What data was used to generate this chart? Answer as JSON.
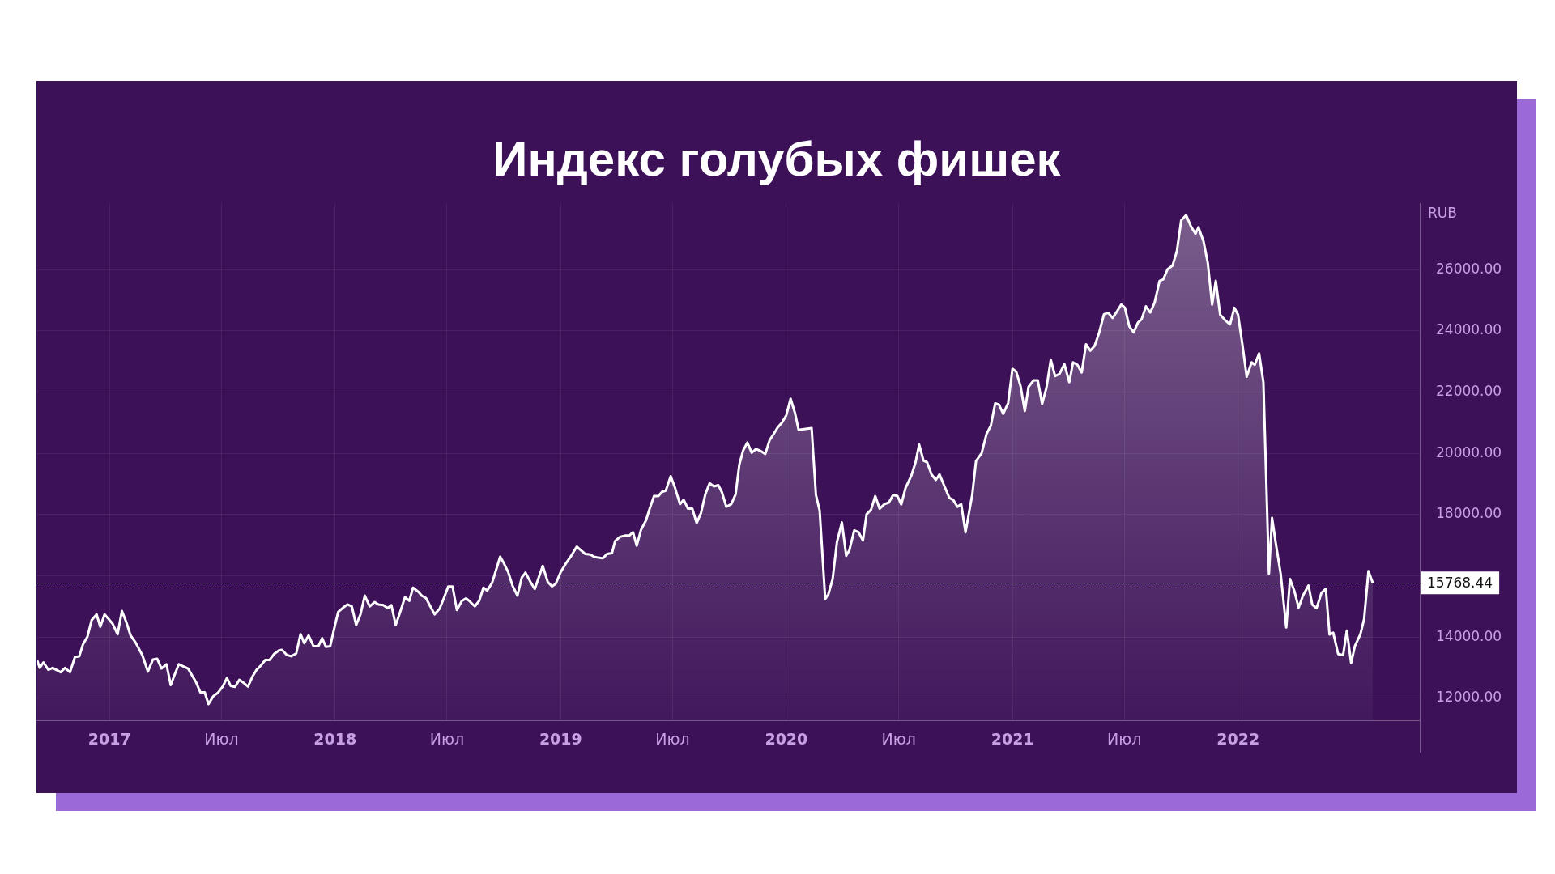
{
  "chart_data": {
    "type": "area",
    "title": "Индекс голубых фишек",
    "ylabel": "RUB",
    "x": [
      "2016-09-06",
      "2016-09-10",
      "2016-09-16",
      "2016-09-24",
      "2016-10-01",
      "2016-10-14",
      "2016-10-21",
      "2016-10-29",
      "2016-11-06",
      "2016-11-13",
      "2016-11-19",
      "2016-11-26",
      "2016-12-03",
      "2016-12-11",
      "2016-12-17",
      "2016-12-24",
      "2017-01-06",
      "2017-01-14",
      "2017-01-21",
      "2017-01-28",
      "2017-02-04",
      "2017-02-12",
      "2017-02-23",
      "2017-03-04",
      "2017-03-12",
      "2017-03-19",
      "2017-03-26",
      "2017-04-03",
      "2017-04-10",
      "2017-04-15",
      "2017-04-23",
      "2017-05-08",
      "2017-05-14",
      "2017-05-21",
      "2017-05-28",
      "2017-06-04",
      "2017-06-10",
      "2017-06-18",
      "2017-06-25",
      "2017-07-03",
      "2017-07-10",
      "2017-07-16",
      "2017-07-23",
      "2017-07-30",
      "2017-08-06",
      "2017-08-13",
      "2017-08-20",
      "2017-08-27",
      "2017-09-03",
      "2017-09-10",
      "2017-09-17",
      "2017-09-24",
      "2017-10-02",
      "2017-10-07",
      "2017-10-15",
      "2017-10-22",
      "2017-10-30",
      "2017-11-06",
      "2017-11-12",
      "2017-11-19",
      "2017-11-27",
      "2017-12-05",
      "2017-12-11",
      "2017-12-17",
      "2017-12-24",
      "2018-01-01",
      "2018-01-06",
      "2018-01-14",
      "2018-01-21",
      "2018-01-28",
      "2018-02-04",
      "2018-02-11",
      "2018-02-18",
      "2018-02-26",
      "2018-03-06",
      "2018-03-12",
      "2018-03-20",
      "2018-03-27",
      "2018-04-02",
      "2018-04-09",
      "2018-04-16",
      "2018-04-24",
      "2018-05-01",
      "2018-05-07",
      "2018-05-16",
      "2018-05-21",
      "2018-05-28",
      "2018-06-04",
      "2018-06-11",
      "2018-06-19",
      "2018-06-26",
      "2018-07-03",
      "2018-07-10",
      "2018-07-17",
      "2018-07-25",
      "2018-08-01",
      "2018-08-07",
      "2018-08-15",
      "2018-08-22",
      "2018-08-29",
      "2018-09-04",
      "2018-09-12",
      "2018-09-25",
      "2018-09-30",
      "2018-10-08",
      "2018-10-15",
      "2018-10-23",
      "2018-10-30",
      "2018-11-05",
      "2018-11-13",
      "2018-11-20",
      "2018-12-03",
      "2018-12-11",
      "2018-12-18",
      "2018-12-24",
      "2019-01-01",
      "2019-01-09",
      "2019-01-18",
      "2019-01-27",
      "2019-02-03",
      "2019-02-10",
      "2019-02-18",
      "2019-02-24",
      "2019-03-03",
      "2019-03-10",
      "2019-03-17",
      "2019-03-25",
      "2019-03-30",
      "2019-04-07",
      "2019-04-15",
      "2019-04-22",
      "2019-04-28",
      "2019-05-04",
      "2019-05-11",
      "2019-05-19",
      "2019-05-25",
      "2019-06-01",
      "2019-06-08",
      "2019-06-14",
      "2019-06-20",
      "2019-06-28",
      "2019-07-05",
      "2019-07-13",
      "2019-07-19",
      "2019-07-26",
      "2019-08-02",
      "2019-08-09",
      "2019-08-16",
      "2019-08-23",
      "2019-08-30",
      "2019-09-06",
      "2019-09-13",
      "2019-09-19",
      "2019-09-26",
      "2019-10-04",
      "2019-10-11",
      "2019-10-17",
      "2019-10-23",
      "2019-10-30",
      "2019-11-06",
      "2019-11-13",
      "2019-11-20",
      "2019-11-28",
      "2019-12-05",
      "2019-12-11",
      "2019-12-18",
      "2019-12-25",
      "2020-01-01",
      "2020-01-08",
      "2020-01-15",
      "2020-01-21",
      "2020-01-30",
      "2020-02-11",
      "2020-02-18",
      "2020-02-24",
      "2020-03-04",
      "2020-03-09",
      "2020-03-16",
      "2020-03-23",
      "2020-03-31",
      "2020-04-07",
      "2020-04-12",
      "2020-04-20",
      "2020-04-27",
      "2020-05-04",
      "2020-05-10",
      "2020-05-17",
      "2020-05-24",
      "2020-05-31",
      "2020-06-08",
      "2020-06-15",
      "2020-06-22",
      "2020-06-29",
      "2020-07-05",
      "2020-07-12",
      "2020-07-21",
      "2020-07-28",
      "2020-08-03",
      "2020-08-10",
      "2020-08-16",
      "2020-08-23",
      "2020-08-30",
      "2020-09-05",
      "2020-09-13",
      "2020-09-21",
      "2020-09-27",
      "2020-10-04",
      "2020-10-10",
      "2020-10-17",
      "2020-10-28",
      "2020-11-03",
      "2020-11-12",
      "2020-11-20",
      "2020-11-27",
      "2020-12-04",
      "2020-12-10",
      "2020-12-17",
      "2020-12-25",
      "2021-01-01",
      "2021-01-07",
      "2021-01-14",
      "2021-01-21",
      "2021-01-27",
      "2021-02-04",
      "2021-02-11",
      "2021-02-18",
      "2021-02-25",
      "2021-03-04",
      "2021-03-11",
      "2021-03-18",
      "2021-03-26",
      "2021-04-03",
      "2021-04-09",
      "2021-04-16",
      "2021-04-23",
      "2021-04-30",
      "2021-05-07",
      "2021-05-14",
      "2021-05-21",
      "2021-05-29",
      "2021-06-05",
      "2021-06-12",
      "2021-06-19",
      "2021-06-26",
      "2021-07-02",
      "2021-07-09",
      "2021-07-16",
      "2021-07-23",
      "2021-07-29",
      "2021-08-05",
      "2021-08-12",
      "2021-08-19",
      "2021-08-27",
      "2021-09-02",
      "2021-09-09",
      "2021-09-17",
      "2021-09-24",
      "2021-10-01",
      "2021-10-09",
      "2021-10-17",
      "2021-10-24",
      "2021-10-29",
      "2021-11-06",
      "2021-11-13",
      "2021-11-20",
      "2021-11-26",
      "2021-12-03",
      "2021-12-11",
      "2021-12-19",
      "2021-12-26",
      "2022-01-01",
      "2022-01-08",
      "2022-01-15",
      "2022-01-23",
      "2022-01-28",
      "2022-02-04",
      "2022-02-11",
      "2022-02-20",
      "2022-02-25",
      "2022-03-03",
      "2022-03-11",
      "2022-03-20",
      "2022-03-26",
      "2022-04-02",
      "2022-04-09",
      "2022-04-16",
      "2022-04-25",
      "2022-05-01",
      "2022-05-08",
      "2022-05-16",
      "2022-05-23",
      "2022-05-29",
      "2022-06-04",
      "2022-06-12",
      "2022-06-20",
      "2022-06-26",
      "2022-07-03",
      "2022-07-09",
      "2022-07-18",
      "2022-07-24",
      "2022-07-31",
      "2022-08-07"
    ],
    "series": [
      {
        "color": "#ffffff",
        "values": [
          13230,
          12990,
          13170,
          12930,
          12990,
          12850,
          12990,
          12850,
          13350,
          13370,
          13760,
          14000,
          14550,
          14740,
          14330,
          14740,
          14430,
          14090,
          14850,
          14490,
          14050,
          13820,
          13410,
          12870,
          13260,
          13290,
          12970,
          13110,
          12430,
          12700,
          13110,
          12970,
          12760,
          12520,
          12190,
          12190,
          11810,
          12070,
          12170,
          12380,
          12660,
          12400,
          12370,
          12600,
          12500,
          12380,
          12700,
          12930,
          13070,
          13250,
          13250,
          13440,
          13560,
          13580,
          13410,
          13370,
          13460,
          14090,
          13800,
          14050,
          13700,
          13700,
          13960,
          13680,
          13700,
          14410,
          14820,
          14960,
          15060,
          15000,
          14390,
          14740,
          15350,
          15000,
          15140,
          15060,
          15040,
          14940,
          15040,
          14390,
          14800,
          15300,
          15180,
          15610,
          15470,
          15350,
          15270,
          15000,
          14740,
          14920,
          15270,
          15650,
          15650,
          14880,
          15180,
          15260,
          15160,
          15000,
          15180,
          15610,
          15510,
          15770,
          16620,
          16450,
          16120,
          15680,
          15350,
          15940,
          16100,
          15800,
          15570,
          16320,
          15800,
          15650,
          15740,
          16120,
          16390,
          16650,
          16950,
          16830,
          16710,
          16690,
          16620,
          16590,
          16570,
          16710,
          16740,
          17130,
          17270,
          17310,
          17310,
          17420,
          16980,
          17500,
          17810,
          18190,
          18600,
          18600,
          18740,
          18780,
          19250,
          18870,
          18340,
          18480,
          18190,
          18190,
          17720,
          18050,
          18660,
          19020,
          18920,
          18960,
          18720,
          18250,
          18340,
          18660,
          19630,
          20080,
          20350,
          20020,
          20140,
          20080,
          19980,
          20430,
          20610,
          20840,
          21000,
          21240,
          21780,
          21320,
          20760,
          20790,
          20820,
          18640,
          18130,
          15240,
          15390,
          15890,
          17100,
          17740,
          16650,
          16830,
          17480,
          17420,
          17150,
          18010,
          18150,
          18600,
          18190,
          18340,
          18390,
          18640,
          18600,
          18330,
          18870,
          19250,
          19690,
          20280,
          19760,
          19700,
          19310,
          19130,
          19310,
          18920,
          18540,
          18480,
          18250,
          18340,
          17420,
          18660,
          19750,
          20000,
          20630,
          20900,
          21630,
          21590,
          21290,
          21640,
          22760,
          22670,
          22200,
          21380,
          22170,
          22380,
          22380,
          21610,
          22140,
          23050,
          22520,
          22590,
          22910,
          22320,
          22970,
          22890,
          22640,
          23560,
          23350,
          23510,
          23920,
          24540,
          24590,
          24420,
          24630,
          24860,
          24750,
          24150,
          23950,
          24270,
          24380,
          24800,
          24600,
          24920,
          25630,
          25680,
          26010,
          26130,
          26600,
          27610,
          27780,
          27400,
          27170,
          27380,
          26930,
          26220,
          24860,
          25630,
          24530,
          24350,
          24210,
          24750,
          24530,
          23560,
          22500,
          22970,
          22890,
          23260,
          22320,
          16060,
          17890,
          17070,
          16060,
          14310,
          15890,
          15510,
          14960,
          15350,
          15680,
          15060,
          14940,
          15440,
          15570,
          14080,
          14140,
          13440,
          13410,
          14210,
          13150,
          13700,
          14090,
          14590,
          16150,
          15768.44
        ]
      }
    ],
    "xlim": [
      "2016-09-06",
      "2022-10-22"
    ],
    "xticks": [
      {
        "value": "2017-01-01",
        "label": "2017"
      },
      {
        "value": "2017-07-01",
        "label": "Июл"
      },
      {
        "value": "2018-01-01",
        "label": "2018"
      },
      {
        "value": "2018-07-01",
        "label": "Июл"
      },
      {
        "value": "2019-01-01",
        "label": "2019"
      },
      {
        "value": "2019-07-01",
        "label": "Июл"
      },
      {
        "value": "2020-01-01",
        "label": "2020"
      },
      {
        "value": "2020-07-01",
        "label": "Июл"
      },
      {
        "value": "2021-01-01",
        "label": "2021"
      },
      {
        "value": "2021-07-01",
        "label": "Июл"
      },
      {
        "value": "2022-01-01",
        "label": "2022"
      }
    ],
    "ylim": [
      11280,
      28170
    ],
    "yticks": [
      {
        "value": 12000,
        "label": "12000.00"
      },
      {
        "value": 14000,
        "label": "14000.00"
      },
      {
        "value": 16000,
        "label": null
      },
      {
        "value": 18000,
        "label": "18000.00"
      },
      {
        "value": 20000,
        "label": "20000.00"
      },
      {
        "value": 22000,
        "label": "22000.00"
      },
      {
        "value": 24000,
        "label": "24000.00"
      },
      {
        "value": 26000,
        "label": "26000.00"
      }
    ],
    "ref_lines": [
      {
        "axis": "y",
        "value": 15768.44,
        "label": "15768.44",
        "color": "#ffffff",
        "line_style": "dotted"
      }
    ],
    "grid": true,
    "legend": false,
    "marker": "none",
    "line_style": "solid"
  }
}
